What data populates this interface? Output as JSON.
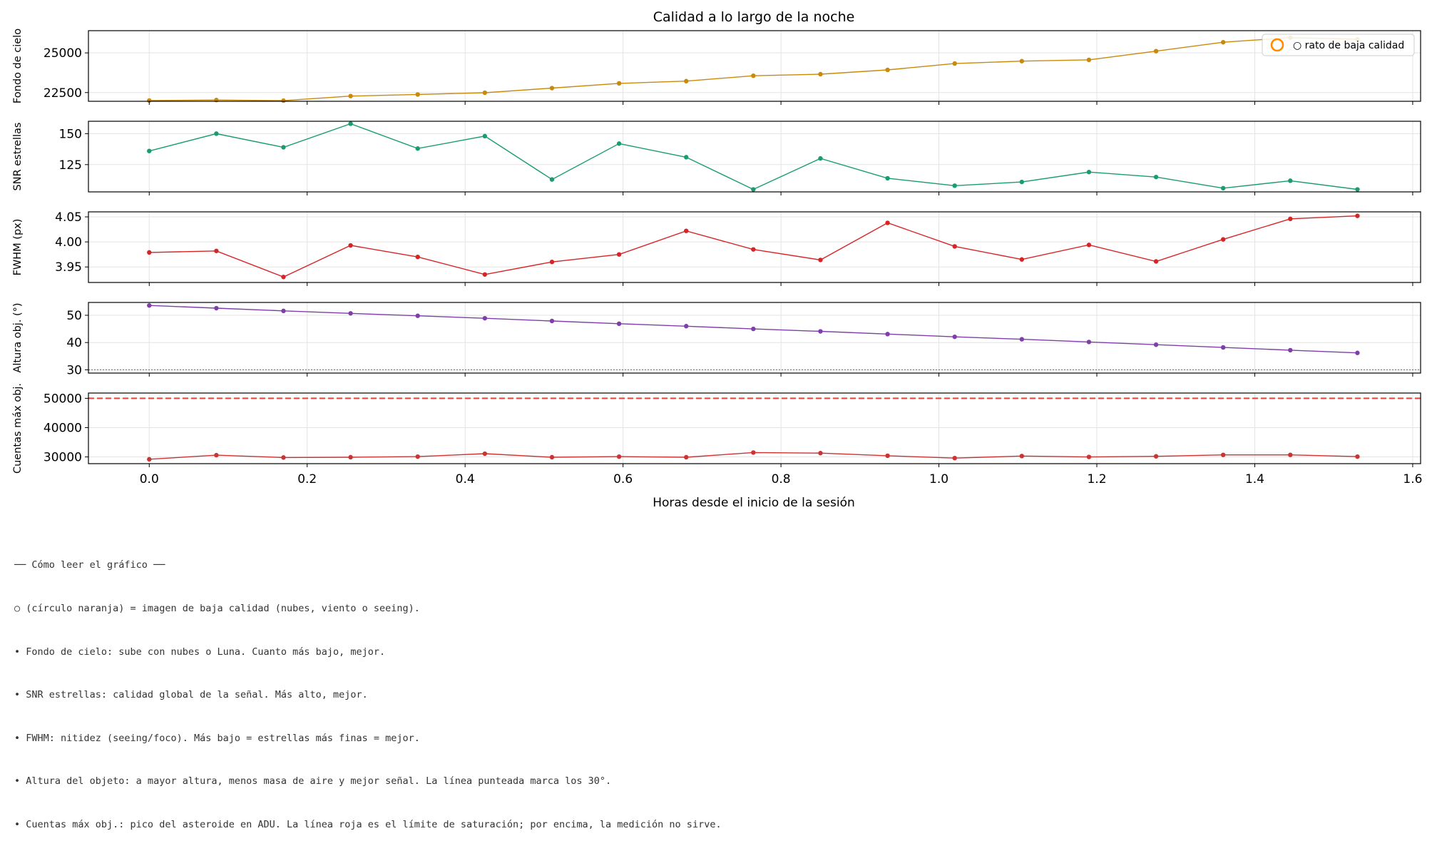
{
  "chart_data": {
    "type": "line",
    "title": "Calidad a lo largo de la noche",
    "xlabel": "Horas desde el inicio de la sesión",
    "xlim": [
      -0.077,
      1.61
    ],
    "xticks": [
      "0.0",
      "0.2",
      "0.4",
      "0.6",
      "0.8",
      "1.0",
      "1.2",
      "1.4",
      "1.6"
    ],
    "x": [
      0.0,
      0.085,
      0.17,
      0.255,
      0.34,
      0.425,
      0.51,
      0.595,
      0.68,
      0.765,
      0.85,
      0.935,
      1.02,
      1.105,
      1.19,
      1.275,
      1.36,
      1.445,
      1.53
    ],
    "grid": true,
    "panels": [
      {
        "ylabel": "Fondo de cielo",
        "color": "#c98a0c",
        "ylim": [
          21950,
          26400
        ],
        "yticks": [
          22500,
          25000
        ],
        "values": [
          22000,
          22030,
          21990,
          22280,
          22380,
          22490,
          22780,
          23080,
          23220,
          23560,
          23660,
          23930,
          24330,
          24480,
          24560,
          25110,
          25670,
          25960,
          25860
        ],
        "legend": {
          "label": "○ rato de baja calidad",
          "placement": "upper-right",
          "marker_color": "#ff8c00"
        }
      },
      {
        "ylabel": "SNR estrellas",
        "color": "#1a9c72",
        "ylim": [
          103,
          160
        ],
        "yticks": [
          125,
          150
        ],
        "values": [
          136,
          150,
          139,
          158,
          138,
          148,
          113,
          142,
          131,
          105,
          130,
          114,
          108,
          111,
          119,
          115,
          106,
          112,
          105
        ]
      },
      {
        "ylabel": "FWHM (px)",
        "color": "#d62526",
        "ylim": [
          3.919,
          4.06
        ],
        "yticks": [
          "3.95",
          "4.00",
          "4.05"
        ],
        "values": [
          3.979,
          3.982,
          3.93,
          3.993,
          3.97,
          3.935,
          3.96,
          3.975,
          4.022,
          3.985,
          3.964,
          4.038,
          3.991,
          3.965,
          3.994,
          3.961,
          4.005,
          4.046,
          4.052
        ]
      },
      {
        "ylabel": "Altura obj. (°)",
        "color": "#7e3fab",
        "ylim": [
          28.8,
          54.7
        ],
        "yticks": [
          30,
          40,
          50
        ],
        "values": [
          53.6,
          52.6,
          51.6,
          50.7,
          49.8,
          48.9,
          47.9,
          46.9,
          46.0,
          45.0,
          44.1,
          43.1,
          42.1,
          41.2,
          40.2,
          39.2,
          38.2,
          37.2,
          36.2
        ],
        "reference_line": {
          "y": 30,
          "style": "dotted",
          "color": "#888888"
        }
      },
      {
        "ylabel": "Cuentas máx obj.",
        "color": "#cc3333",
        "ylim": [
          27700,
          51800
        ],
        "yticks": [
          30000,
          40000,
          50000
        ],
        "values": [
          29200,
          30600,
          29800,
          29900,
          30100,
          31100,
          29900,
          30100,
          29900,
          31500,
          31300,
          30400,
          29600,
          30300,
          30000,
          30200,
          30700,
          30700,
          30100
        ],
        "reference_line": {
          "y": 50000,
          "style": "dashed",
          "color": "#e8443a"
        }
      }
    ]
  },
  "notes": {
    "lines": [
      "── Cómo leer el gráfico ──",
      "○ (círculo naranja) = imagen de baja calidad (nubes, viento o seeing).",
      "• Fondo de cielo: sube con nubes o Luna. Cuanto más bajo, mejor.",
      "• SNR estrellas: calidad global de la señal. Más alto, mejor.",
      "• FWHM: nitidez (seeing/foco). Más bajo = estrellas más finas = mejor.",
      "• Altura del objeto: a mayor altura, menos masa de aire y mejor señal. La línea punteada marca los 30°.",
      "• Cuentas máx obj.: pico del asteroide en ADU. La línea roja es el límite de saturación; por encima, la medición no sirve."
    ]
  }
}
